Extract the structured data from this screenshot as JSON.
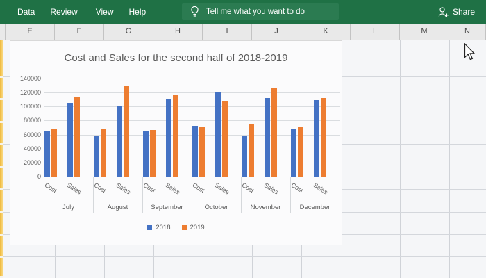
{
  "ribbon": {
    "bg": "#1F7145",
    "items": [
      {
        "label": "Data"
      },
      {
        "label": "Review"
      },
      {
        "label": "View"
      },
      {
        "label": "Help"
      }
    ],
    "tellme": {
      "label": "Tell me what you want to do"
    },
    "share": {
      "label": "Share"
    }
  },
  "sheet": {
    "columns": [
      "E",
      "F",
      "G",
      "H",
      "I",
      "J",
      "K",
      "L",
      "M",
      "N"
    ]
  },
  "chart_data": {
    "type": "bar",
    "title": "Cost and Sales for the second half of 2018-2019",
    "xlabel": "",
    "ylabel": "",
    "ylim": [
      0,
      140000
    ],
    "ytick_step": 20000,
    "yticks": [
      "140000",
      "120000",
      "100000",
      "80000",
      "60000",
      "40000",
      "20000",
      "0"
    ],
    "grid": true,
    "legend_position": "bottom",
    "sub_categories": [
      "Cost",
      "Sales"
    ],
    "months": [
      "July",
      "August",
      "September",
      "October",
      "November",
      "December"
    ],
    "series": [
      {
        "name": "2018",
        "color": "#4472C4"
      },
      {
        "name": "2019",
        "color": "#ED7D31"
      }
    ],
    "groups": [
      {
        "month": "July",
        "cost": [
          65000,
          68000
        ],
        "sales": [
          105000,
          113000
        ]
      },
      {
        "month": "August",
        "cost": [
          59000,
          69000
        ],
        "sales": [
          100000,
          129000
        ]
      },
      {
        "month": "September",
        "cost": [
          66000,
          67000
        ],
        "sales": [
          111000,
          116000
        ]
      },
      {
        "month": "October",
        "cost": [
          71000,
          70000
        ],
        "sales": [
          120000,
          108000
        ]
      },
      {
        "month": "November",
        "cost": [
          59000,
          75000
        ],
        "sales": [
          112000,
          127000
        ]
      },
      {
        "month": "December",
        "cost": [
          68000,
          70000
        ],
        "sales": [
          109000,
          112000
        ]
      }
    ]
  }
}
